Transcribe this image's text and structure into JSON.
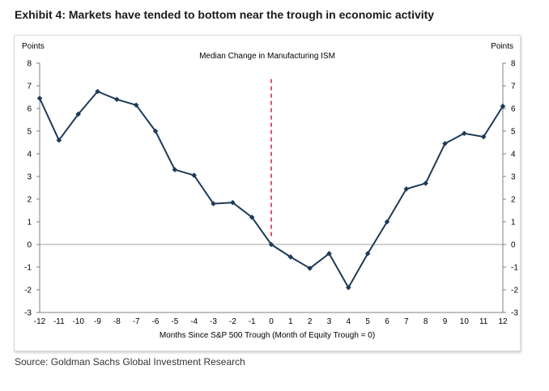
{
  "exhibit_title": "Exhibit 4: Markets have tended to bottom near the trough in economic activity",
  "source": "Source: Goldman Sachs Global Investment Research",
  "colors": {
    "series_line": "#1f3b57",
    "trough_marker": "#c8102e",
    "axis": "#808080"
  },
  "chart_data": {
    "type": "line",
    "title": "Median Change in Manufacturing ISM",
    "xlabel": "Months Since S&P 500 Trough (Month of Equity Trough = 0)",
    "ylabel_left": "Points",
    "ylabel_right": "Points",
    "ylim": [
      -3,
      8
    ],
    "xlim": [
      -12,
      12
    ],
    "y_ticks": [
      -3,
      -2,
      -1,
      0,
      1,
      2,
      3,
      4,
      5,
      6,
      7,
      8
    ],
    "x_ticks": [
      -12,
      -11,
      -10,
      -9,
      -8,
      -7,
      -6,
      -5,
      -4,
      -3,
      -2,
      -1,
      0,
      1,
      2,
      3,
      4,
      5,
      6,
      7,
      8,
      9,
      10,
      11,
      12
    ],
    "grid": false,
    "trough_line_x": 0,
    "x": [
      -12,
      -11,
      -10,
      -9,
      -8,
      -7,
      -6,
      -5,
      -4,
      -3,
      -2,
      -1,
      0,
      1,
      2,
      3,
      4,
      5,
      6,
      7,
      8,
      9,
      10,
      11,
      12
    ],
    "y": [
      6.45,
      4.6,
      5.75,
      6.75,
      6.4,
      6.15,
      5.0,
      3.3,
      3.05,
      1.8,
      1.85,
      1.2,
      0.0,
      -0.55,
      -1.05,
      -0.4,
      -1.9,
      -0.4,
      1.0,
      2.45,
      2.7,
      4.45,
      4.9,
      4.75,
      6.1
    ]
  }
}
